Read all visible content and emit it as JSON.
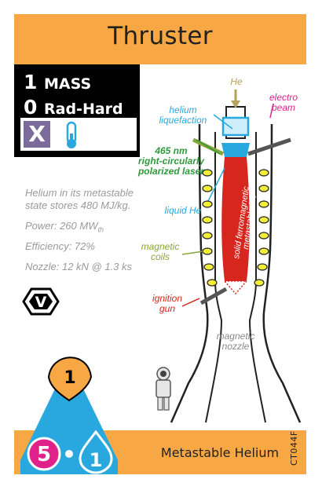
{
  "title": "Thruster",
  "subtitle": "Metastable Helium",
  "card_code": "CT044F",
  "stats": {
    "mass_value": "1",
    "mass_label": "MASS",
    "radhard_value": "0",
    "radhard_label": "Rad-Hard",
    "x_mark": "X"
  },
  "description": {
    "line1": "Helium in its metastable",
    "line2": "state stores 480 MJ/kg.",
    "power": "Power: 260 MW",
    "power_sub": "th",
    "efficiency": "Efficiency: 72%",
    "nozzle": "Nozzle: 12 kN @ 1.3 ks"
  },
  "badges": {
    "v_label": "V",
    "top_number": "1",
    "bottom_left_number": "5",
    "bottom_right_number": "1"
  },
  "diagram_labels": {
    "he": "He",
    "electro_beam_1": "electro",
    "electro_beam_2": "beam",
    "helium_liq_1": "helium",
    "helium_liq_2": "liquefaction",
    "laser_1": "465 nm",
    "laser_2": "right-circularly",
    "laser_3": "polarized laser",
    "liquid_he": "liquid He",
    "core_1": "solid ferromagnetic",
    "core_2": "metastable He*",
    "coils_1": "magnetic",
    "coils_2": "coils",
    "ignition_1": "ignition",
    "ignition_2": "gun",
    "nozzle_1": "magnetic",
    "nozzle_2": "nozzle"
  },
  "colors": {
    "bar": "#f7a844",
    "purple": "#7b6a9a",
    "magenta": "#e0218a",
    "cyan": "#29a8e0",
    "green": "#2e9a3b",
    "olive": "#8aa53a",
    "red": "#d7261e",
    "gray": "#9a9a9a"
  }
}
